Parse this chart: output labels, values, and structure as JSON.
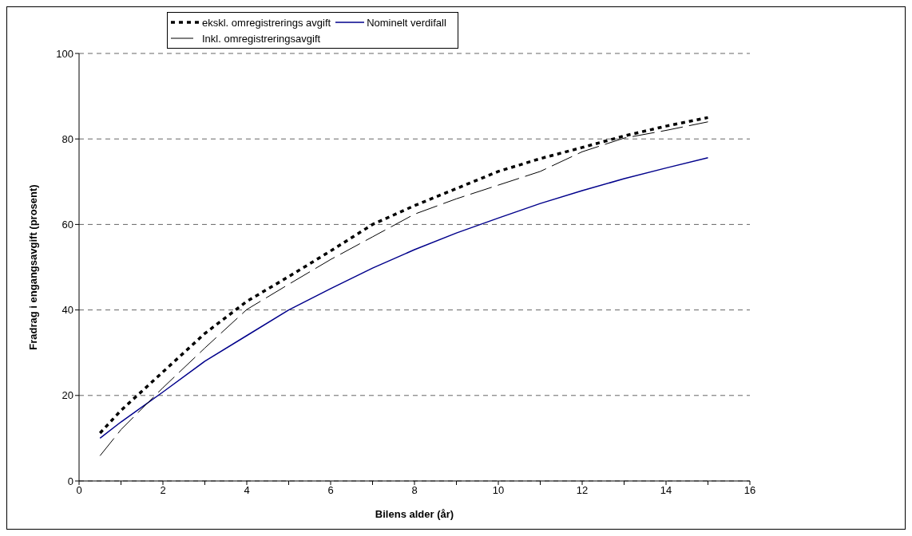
{
  "chart_data": {
    "type": "line",
    "xlabel": "Bilens alder (år)",
    "ylabel": "Fradrag i engangsavgift (prosent)",
    "x": [
      0.5,
      1,
      2,
      3,
      4,
      5,
      6,
      7,
      8,
      9,
      10,
      11,
      12,
      13,
      14,
      15
    ],
    "series": [
      {
        "name": "ekskl. omregistrerings avgift",
        "color": "#000000",
        "line_style": "dotted",
        "values": [
          11.2,
          16.5,
          25.5,
          34.5,
          42,
          47.8,
          53.8,
          60,
          64.4,
          68.4,
          72.4,
          75.4,
          78,
          80.7,
          83,
          85
        ]
      },
      {
        "name": "Nominelt verdifall",
        "color": "#00008b",
        "line_style": "solid",
        "values": [
          10,
          13.8,
          20.8,
          28,
          34,
          40,
          45,
          49.8,
          54.1,
          58,
          61.5,
          64.9,
          67.9,
          70.7,
          73.2,
          75.6
        ]
      },
      {
        "name": "Inkl. omregistreringsavgift",
        "color": "#000000",
        "line_style": "dashed",
        "values": [
          5.9,
          12,
          21.8,
          31.1,
          40.1,
          46,
          51.8,
          57.1,
          62.4,
          66,
          69.2,
          72.4,
          77,
          80.2,
          82,
          84
        ]
      }
    ],
    "xlim": [
      0,
      16
    ],
    "xticks": [
      0,
      {
        "value": 1,
        "label": null
      },
      2,
      {
        "value": 3,
        "label": null
      },
      4,
      {
        "value": 5,
        "label": null
      },
      6,
      {
        "value": 7,
        "label": null
      },
      8,
      {
        "value": 9,
        "label": null
      },
      10,
      {
        "value": 11,
        "label": null
      },
      12,
      {
        "value": 13,
        "label": null
      },
      14,
      {
        "value": 15,
        "label": null
      },
      16
    ],
    "ylim": [
      0,
      100
    ],
    "yticks": [
      0,
      20,
      40,
      60,
      80,
      100
    ],
    "grid": "y",
    "legend": "top",
    "marker": "none"
  }
}
